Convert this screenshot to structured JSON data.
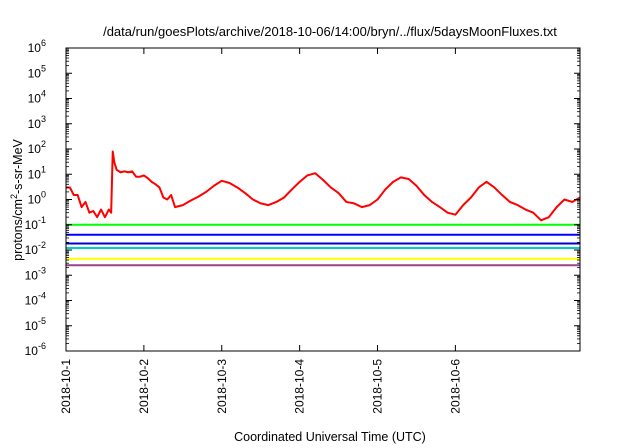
{
  "chart_data": {
    "type": "line",
    "title": "/data/run/goesPlots/archive/2018-10-06/14:00/bryn/../flux/5daysMoonFluxes.txt",
    "xlabel": "Coordinated Universal Time (UTC)",
    "ylabel": {
      "prefix": "protons/cm",
      "sup": "2",
      "suffix": "-s-sr-MeV"
    },
    "yscale": "log",
    "ylim": [
      -6,
      6
    ],
    "xlim": [
      0,
      6.6
    ],
    "x_ticks": [
      {
        "value": 0,
        "label": "2018-10-1"
      },
      {
        "value": 1,
        "label": "2018-10-2"
      },
      {
        "value": 2,
        "label": "2018-10-3"
      },
      {
        "value": 3,
        "label": "2018-10-4"
      },
      {
        "value": 4,
        "label": "2018-10-5"
      },
      {
        "value": 5,
        "label": "2018-10-6"
      }
    ],
    "y_ticks": [
      {
        "value": -6,
        "base": "10",
        "exp": "-6"
      },
      {
        "value": -5,
        "base": "10",
        "exp": "-5"
      },
      {
        "value": -4,
        "base": "10",
        "exp": "-4"
      },
      {
        "value": -3,
        "base": "10",
        "exp": "-3"
      },
      {
        "value": -2,
        "base": "10",
        "exp": "-2"
      },
      {
        "value": -1,
        "base": "10",
        "exp": "-1"
      },
      {
        "value": 0,
        "base": "10",
        "exp": "0"
      },
      {
        "value": 1,
        "base": "10",
        "exp": "1"
      },
      {
        "value": 2,
        "base": "10",
        "exp": "2"
      },
      {
        "value": 3,
        "base": "10",
        "exp": "3"
      },
      {
        "value": 4,
        "base": "10",
        "exp": "4"
      },
      {
        "value": 5,
        "base": "10",
        "exp": "5"
      },
      {
        "value": 6,
        "base": "10",
        "exp": "6"
      }
    ],
    "grid": false,
    "legend": false,
    "series": [
      {
        "color": "#ff0000",
        "x": [
          0,
          0.05,
          0.1,
          0.15,
          0.2,
          0.25,
          0.3,
          0.35,
          0.4,
          0.45,
          0.5,
          0.55,
          0.58,
          0.6,
          0.62,
          0.65,
          0.7,
          0.75,
          0.8,
          0.85,
          0.9,
          0.95,
          1.0,
          1.05,
          1.1,
          1.15,
          1.2,
          1.25,
          1.3,
          1.35,
          1.4,
          1.5,
          1.6,
          1.7,
          1.8,
          1.9,
          2.0,
          2.1,
          2.2,
          2.3,
          2.4,
          2.5,
          2.6,
          2.7,
          2.8,
          2.9,
          3.0,
          3.1,
          3.2,
          3.3,
          3.4,
          3.5,
          3.6,
          3.7,
          3.8,
          3.9,
          4.0,
          4.1,
          4.2,
          4.3,
          4.4,
          4.5,
          4.6,
          4.7,
          4.8,
          4.9,
          5.0,
          5.1,
          5.2,
          5.3,
          5.4,
          5.5,
          5.6,
          5.7,
          5.8,
          5.9,
          6.0,
          6.1,
          6.2,
          6.3,
          6.4,
          6.5,
          6.6
        ],
        "y": [
          3.0,
          3.0,
          1.5,
          1.5,
          0.5,
          0.8,
          0.3,
          0.35,
          0.2,
          0.4,
          0.2,
          0.4,
          0.3,
          80,
          30,
          15,
          12,
          13,
          12,
          13,
          8,
          8,
          9,
          7,
          5,
          4,
          3,
          1.2,
          1.0,
          1.5,
          0.5,
          0.6,
          0.9,
          1.3,
          2.0,
          3.5,
          5.5,
          4.5,
          3.0,
          1.8,
          1.0,
          0.7,
          0.6,
          0.8,
          1.2,
          2.5,
          5.0,
          9.0,
          11.0,
          6.0,
          3.0,
          1.8,
          0.8,
          0.7,
          0.5,
          0.6,
          1.0,
          2.5,
          5.0,
          7.5,
          6.5,
          3.5,
          1.5,
          0.8,
          0.5,
          0.3,
          0.25,
          0.6,
          1.2,
          3.0,
          5.0,
          3.0,
          1.5,
          0.8,
          0.6,
          0.4,
          0.3,
          0.15,
          0.2,
          0.5,
          1.0,
          0.8,
          1.2
        ]
      },
      {
        "color": "#00ff00",
        "x": [
          0,
          6.6
        ],
        "y": [
          0.1,
          0.1
        ]
      },
      {
        "color": "#0000ff",
        "x": [
          0,
          6.6
        ],
        "y": [
          0.04,
          0.04
        ]
      },
      {
        "color": "#00cccc",
        "x": [
          0,
          6.6
        ],
        "y": [
          0.012,
          0.012
        ]
      },
      {
        "color": "#0000cc",
        "x": [
          0,
          6.6
        ],
        "y": [
          0.018,
          0.018
        ]
      },
      {
        "color": "#ffff00",
        "x": [
          0,
          6.6
        ],
        "y": [
          0.0045,
          0.0045
        ]
      },
      {
        "color": "#994488",
        "x": [
          0,
          6.6
        ],
        "y": [
          0.0025,
          0.0025
        ]
      }
    ]
  }
}
